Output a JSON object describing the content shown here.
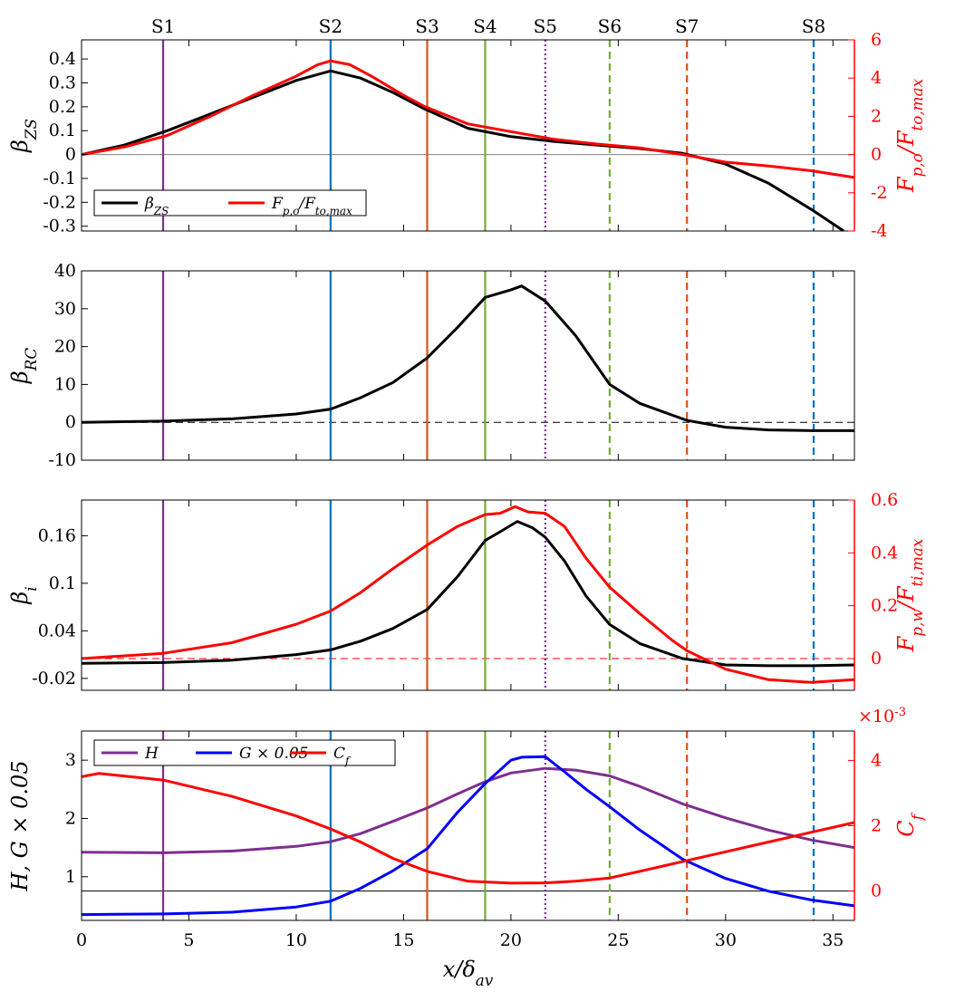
{
  "chart_data": {
    "type": "line",
    "x_range": [
      0,
      36
    ],
    "x_ticks": [
      0,
      5,
      10,
      15,
      20,
      25,
      30,
      35
    ],
    "x_tick_labels": [
      "0",
      "5",
      "10",
      "15",
      "20",
      "25",
      "30",
      "35"
    ],
    "xlabel": "x/δav",
    "stations": [
      {
        "name": "S1",
        "x": 3.8,
        "color": "#7e2f8e",
        "style": "solid"
      },
      {
        "name": "S2",
        "x": 11.6,
        "color": "#0072bd",
        "style": "solid"
      },
      {
        "name": "S3",
        "x": 16.1,
        "color": "#d95319",
        "style": "solid"
      },
      {
        "name": "S4",
        "x": 18.8,
        "color": "#77ac30",
        "style": "solid"
      },
      {
        "name": "S5",
        "x": 21.6,
        "color": "#7e2f8e",
        "style": "dotted"
      },
      {
        "name": "S6",
        "x": 24.6,
        "color": "#77ac30",
        "style": "dashed"
      },
      {
        "name": "S7",
        "x": 28.2,
        "color": "#d95319",
        "style": "dashed"
      },
      {
        "name": "S8",
        "x": 34.1,
        "color": "#0072bd",
        "style": "dashed"
      }
    ],
    "panels": [
      {
        "id": "beta_zs",
        "ylabel": "βZS",
        "ylim": [
          -0.32,
          0.48
        ],
        "yticks": [
          -0.3,
          -0.2,
          -0.1,
          0,
          0.1,
          0.2,
          0.3,
          0.4
        ],
        "ytick_labels": [
          "-0.3",
          "-0.2",
          "-0.1",
          "0",
          "0.1",
          "0.2",
          "0.3",
          "0.4"
        ],
        "y2label": "Fp,o/Fto,max",
        "y2lim": [
          -4,
          6
        ],
        "y2ticks": [
          -4,
          -2,
          0,
          2,
          4,
          6
        ],
        "y2tick_labels": [
          "-4",
          "-2",
          "0",
          "2",
          "4",
          "6"
        ],
        "hline": {
          "y": 0,
          "axis": "left",
          "color": "#808080",
          "style": "solid"
        },
        "legend": {
          "position": "bottom-left",
          "entries": [
            "βZS",
            "Fp,o/Fto,max"
          ]
        },
        "series": [
          {
            "name": "βZS",
            "color": "#000000",
            "axis": "left",
            "x": [
              0,
              2,
              4,
              6,
              8,
              10,
              11.6,
              13,
              14.5,
              16,
              18,
              20,
              22,
              24,
              26,
              28,
              30,
              32,
              34,
              35.5
            ],
            "y": [
              0,
              0.04,
              0.1,
              0.17,
              0.24,
              0.31,
              0.35,
              0.32,
              0.26,
              0.19,
              0.11,
              0.075,
              0.055,
              0.04,
              0.025,
              0.005,
              -0.04,
              -0.12,
              -0.23,
              -0.32
            ]
          },
          {
            "name": "Fp,o/Fto,max",
            "color": "#ff0000",
            "axis": "right",
            "x": [
              0,
              2,
              4,
              6,
              8,
              10,
              11,
              11.6,
              12.5,
              13.5,
              15,
              16,
              18,
              20,
              22,
              24,
              26,
              28,
              30,
              32,
              34,
              36
            ],
            "y": [
              0,
              0.4,
              1.0,
              2.0,
              3.1,
              4.1,
              4.7,
              4.9,
              4.7,
              4.1,
              3.1,
              2.5,
              1.6,
              1.2,
              0.8,
              0.55,
              0.35,
              0.0,
              -0.4,
              -0.6,
              -0.85,
              -1.2
            ]
          }
        ]
      },
      {
        "id": "beta_rc",
        "ylabel": "βRC",
        "ylim": [
          -10,
          40
        ],
        "yticks": [
          -10,
          0,
          10,
          20,
          30,
          40
        ],
        "ytick_labels": [
          "-10",
          "0",
          "10",
          "20",
          "30",
          "40"
        ],
        "hline": {
          "y": 0,
          "axis": "left",
          "color": "#000000",
          "style": "dashed"
        },
        "series": [
          {
            "name": "βRC",
            "color": "#000000",
            "axis": "left",
            "x": [
              0,
              3.8,
              7,
              10,
              11.6,
              13,
              14.5,
              16.1,
              17.5,
              18.8,
              20,
              20.5,
              21.6,
              23,
              24.6,
              26,
              28.2,
              30,
              32,
              34,
              36
            ],
            "y": [
              0,
              0.3,
              0.9,
              2.2,
              3.5,
              6.5,
              10.5,
              17,
              25,
              33,
              35,
              36,
              32,
              23,
              10,
              5,
              0.5,
              -1.3,
              -2,
              -2.2,
              -2.2
            ]
          }
        ]
      },
      {
        "id": "beta_i",
        "ylabel": "βi",
        "ylim": [
          -0.035,
          0.205
        ],
        "yticks": [
          -0.02,
          0.04,
          0.1,
          0.16
        ],
        "ytick_labels": [
          "-0.02",
          "0.04",
          "0.1",
          "0.16"
        ],
        "y2label": "Fp,w/Fti,max",
        "y2lim": [
          -0.12,
          0.6
        ],
        "y2ticks": [
          0,
          0.2,
          0.4,
          0.6
        ],
        "y2tick_labels": [
          "0",
          "0.2",
          "0.4",
          "0.6"
        ],
        "hline": {
          "y": 0,
          "axis": "right",
          "color": "#ff0000",
          "style": "dashed"
        },
        "series": [
          {
            "name": "βi",
            "color": "#000000",
            "axis": "left",
            "x": [
              0,
              3.8,
              7,
              10,
              11.6,
              13,
              14.5,
              16.1,
              17.5,
              18.8,
              19.5,
              20.3,
              21,
              21.6,
              22.5,
              23.5,
              24.6,
              26,
              28,
              30,
              32,
              34,
              36
            ],
            "y": [
              -0.001,
              0,
              0.003,
              0.01,
              0.016,
              0.027,
              0.043,
              0.067,
              0.108,
              0.154,
              0.165,
              0.178,
              0.17,
              0.158,
              0.128,
              0.084,
              0.048,
              0.024,
              0.005,
              -0.003,
              -0.004,
              -0.004,
              -0.003
            ]
          },
          {
            "name": "Fp,w/Fti,max",
            "color": "#ff0000",
            "axis": "right",
            "x": [
              0,
              3.8,
              7,
              10,
              11.6,
              13,
              14.5,
              16.1,
              17.5,
              18.8,
              19.5,
              20.2,
              20.8,
              21.6,
              22.5,
              23.5,
              24.6,
              26,
              27.5,
              28.2,
              30,
              32,
              34,
              36
            ],
            "y": [
              0,
              0.02,
              0.06,
              0.13,
              0.18,
              0.25,
              0.34,
              0.43,
              0.5,
              0.545,
              0.55,
              0.575,
              0.555,
              0.55,
              0.5,
              0.38,
              0.27,
              0.17,
              0.07,
              0.03,
              -0.04,
              -0.08,
              -0.09,
              -0.08
            ]
          }
        ]
      },
      {
        "id": "shape_factor",
        "ylabel": "H, G × 0.05",
        "ylim": [
          0.25,
          3.5
        ],
        "yticks": [
          1,
          2,
          3
        ],
        "ytick_labels": [
          "1",
          "2",
          "3"
        ],
        "y2label": "Cf",
        "y2lim": [
          -0.0009,
          0.0049
        ],
        "y2ticks": [
          0,
          0.002,
          0.004
        ],
        "y2tick_labels": [
          "0",
          "2",
          "4"
        ],
        "y2_multiplier": "×10-3",
        "hline": {
          "y": 0,
          "axis": "right",
          "color": "#000000",
          "style": "solid"
        },
        "legend": {
          "position": "top-left",
          "entries": [
            "H",
            "G × 0.05",
            "Cf"
          ]
        },
        "series": [
          {
            "name": "H",
            "color": "#7e2f8e",
            "axis": "left",
            "x": [
              0,
              3.8,
              7,
              10,
              11.6,
              13,
              14.5,
              16.1,
              17.5,
              18.8,
              20,
              21.6,
              23,
              24.6,
              26,
              28,
              30,
              32,
              34,
              36
            ],
            "y": [
              1.42,
              1.41,
              1.44,
              1.52,
              1.6,
              1.74,
              1.95,
              2.18,
              2.42,
              2.63,
              2.78,
              2.86,
              2.83,
              2.73,
              2.55,
              2.25,
              2.01,
              1.8,
              1.63,
              1.5
            ]
          },
          {
            "name": "G × 0.05",
            "color": "#0000ff",
            "axis": "left",
            "x": [
              0,
              3.8,
              7,
              10,
              11.6,
              13,
              14.5,
              16.1,
              17.5,
              18.8,
              20,
              20.5,
              21.6,
              22.5,
              23.5,
              24.6,
              26,
              28,
              30,
              32,
              34,
              36
            ],
            "y": [
              0.35,
              0.36,
              0.39,
              0.48,
              0.58,
              0.8,
              1.1,
              1.48,
              2.1,
              2.6,
              3.0,
              3.05,
              3.06,
              2.8,
              2.5,
              2.2,
              1.8,
              1.3,
              0.97,
              0.75,
              0.6,
              0.5
            ]
          },
          {
            "name": "Cf",
            "color": "#ff0000",
            "axis": "right",
            "x": [
              0,
              0.8,
              3.8,
              7,
              10,
              11.6,
              13,
              14.5,
              16.1,
              18,
              20,
              21.6,
              23,
              24.6,
              26,
              28,
              30,
              32,
              34,
              36
            ],
            "y": [
              0.0035,
              0.0036,
              0.0034,
              0.0029,
              0.0023,
              0.0019,
              0.0015,
              0.001,
              0.0006,
              0.0003,
              0.00024,
              0.00025,
              0.0003,
              0.0004,
              0.0006,
              0.0009,
              0.0012,
              0.0015,
              0.0018,
              0.0021
            ]
          }
        ]
      }
    ]
  }
}
